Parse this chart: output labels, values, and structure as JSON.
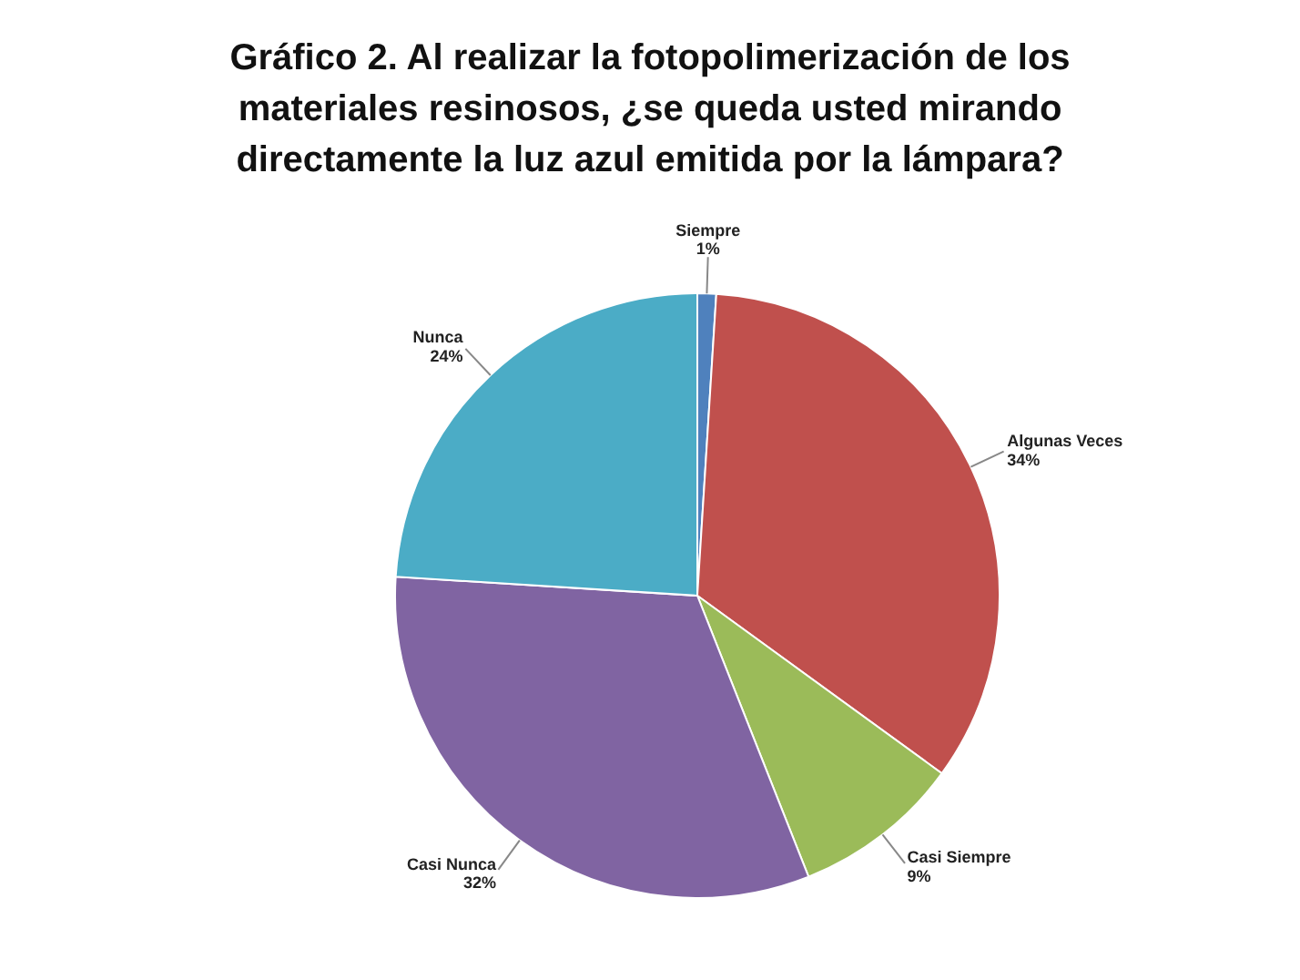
{
  "chart_data": {
    "type": "pie",
    "title": "Gráfico 2.  Al realizar la fotopolimerización de los materiales resinosos, ¿se queda usted mirando directamente la luz azul emitida por la lámpara?",
    "categories": [
      "Siempre",
      "Algunas Veces",
      "Casi Siempre",
      "Casi Nunca",
      "Nunca"
    ],
    "values": [
      1,
      34,
      9,
      32,
      24
    ],
    "value_labels": [
      "1%",
      "34%",
      "9%",
      "32%",
      "24%"
    ],
    "colors": [
      "#4f81bd",
      "#c0504d",
      "#9bbb59",
      "#8064a2",
      "#4bacc6"
    ],
    "legend": false
  }
}
